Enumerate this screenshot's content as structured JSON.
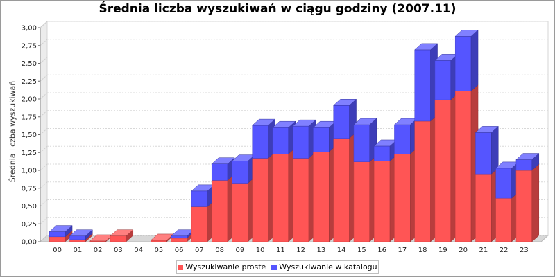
{
  "chart_data": {
    "type": "bar",
    "stacked": true,
    "title": "Średnia liczba wyszukiwań w ciągu godziny (2007.11)",
    "xlabel": "",
    "ylabel": "Średnia liczba wyszukiwań",
    "ylim": [
      0,
      3.0
    ],
    "ytick_labels": [
      "0,00",
      "0,25",
      "0,50",
      "0,75",
      "1,00",
      "1,25",
      "1,50",
      "1,75",
      "2,00",
      "2,25",
      "2,50",
      "2,75",
      "3,00"
    ],
    "grid": true,
    "legend_position": "bottom",
    "categories": [
      "00",
      "01",
      "02",
      "03",
      "04",
      "05",
      "06",
      "07",
      "08",
      "09",
      "10",
      "11",
      "12",
      "13",
      "14",
      "15",
      "16",
      "17",
      "18",
      "19",
      "20",
      "21",
      "22",
      "23"
    ],
    "series": [
      {
        "name": "Wyszukiwanie proste",
        "color": "#ff5555",
        "values": [
          0.07,
          0.03,
          0.01,
          0.08,
          0.0,
          0.02,
          0.05,
          0.49,
          0.86,
          0.82,
          1.17,
          1.23,
          1.17,
          1.26,
          1.45,
          1.12,
          1.13,
          1.23,
          1.69,
          1.99,
          2.11,
          0.95,
          0.61,
          1.0
        ]
      },
      {
        "name": "Wyszukiwanie w katalogu",
        "color": "#5555ff",
        "values": [
          0.07,
          0.05,
          0.0,
          0.0,
          0.0,
          0.0,
          0.03,
          0.22,
          0.23,
          0.31,
          0.46,
          0.37,
          0.45,
          0.34,
          0.46,
          0.52,
          0.21,
          0.41,
          1.0,
          0.55,
          0.77,
          0.58,
          0.42,
          0.15
        ]
      }
    ]
  }
}
